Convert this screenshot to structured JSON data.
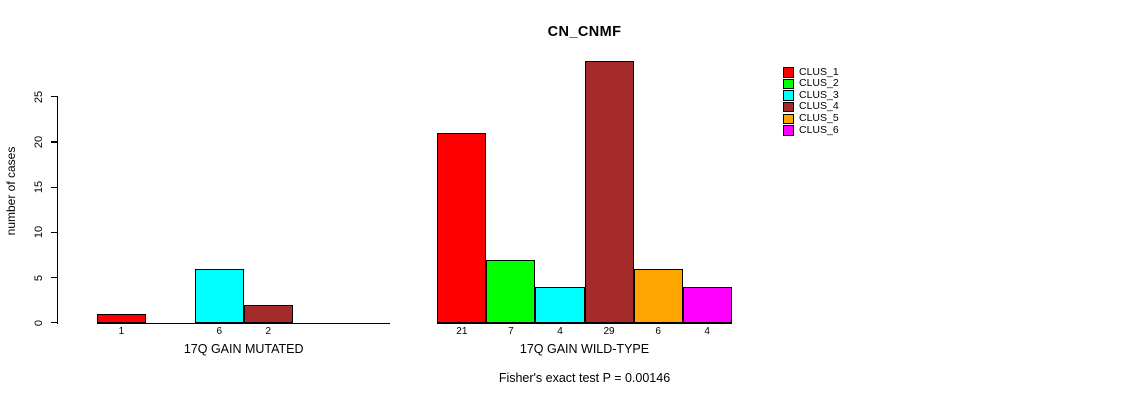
{
  "chart_data": {
    "type": "bar",
    "title": "CN_CNMF",
    "ylabel": "number of cases",
    "ylim": [
      0,
      25
    ],
    "yticks": [
      0,
      5,
      10,
      15,
      20,
      25
    ],
    "grid": false,
    "legend_position": "right",
    "series": [
      "CLUS_1",
      "CLUS_2",
      "CLUS_3",
      "CLUS_4",
      "CLUS_5",
      "CLUS_6"
    ],
    "colors": [
      "#FF0000",
      "#00FF00",
      "#00FFFF",
      "#A52A2A",
      "#FFA500",
      "#FF00FF"
    ],
    "groups": [
      {
        "label": "17Q GAIN MUTATED",
        "values": [
          1,
          0,
          6,
          2,
          0,
          0
        ]
      },
      {
        "label": "17Q GAIN WILD-TYPE",
        "values": [
          21,
          7,
          4,
          29,
          6,
          4
        ]
      }
    ],
    "bar_value_labels": "counts shown under each nonzero bar",
    "annotation": "Fisher's exact test P = 0.00146"
  }
}
